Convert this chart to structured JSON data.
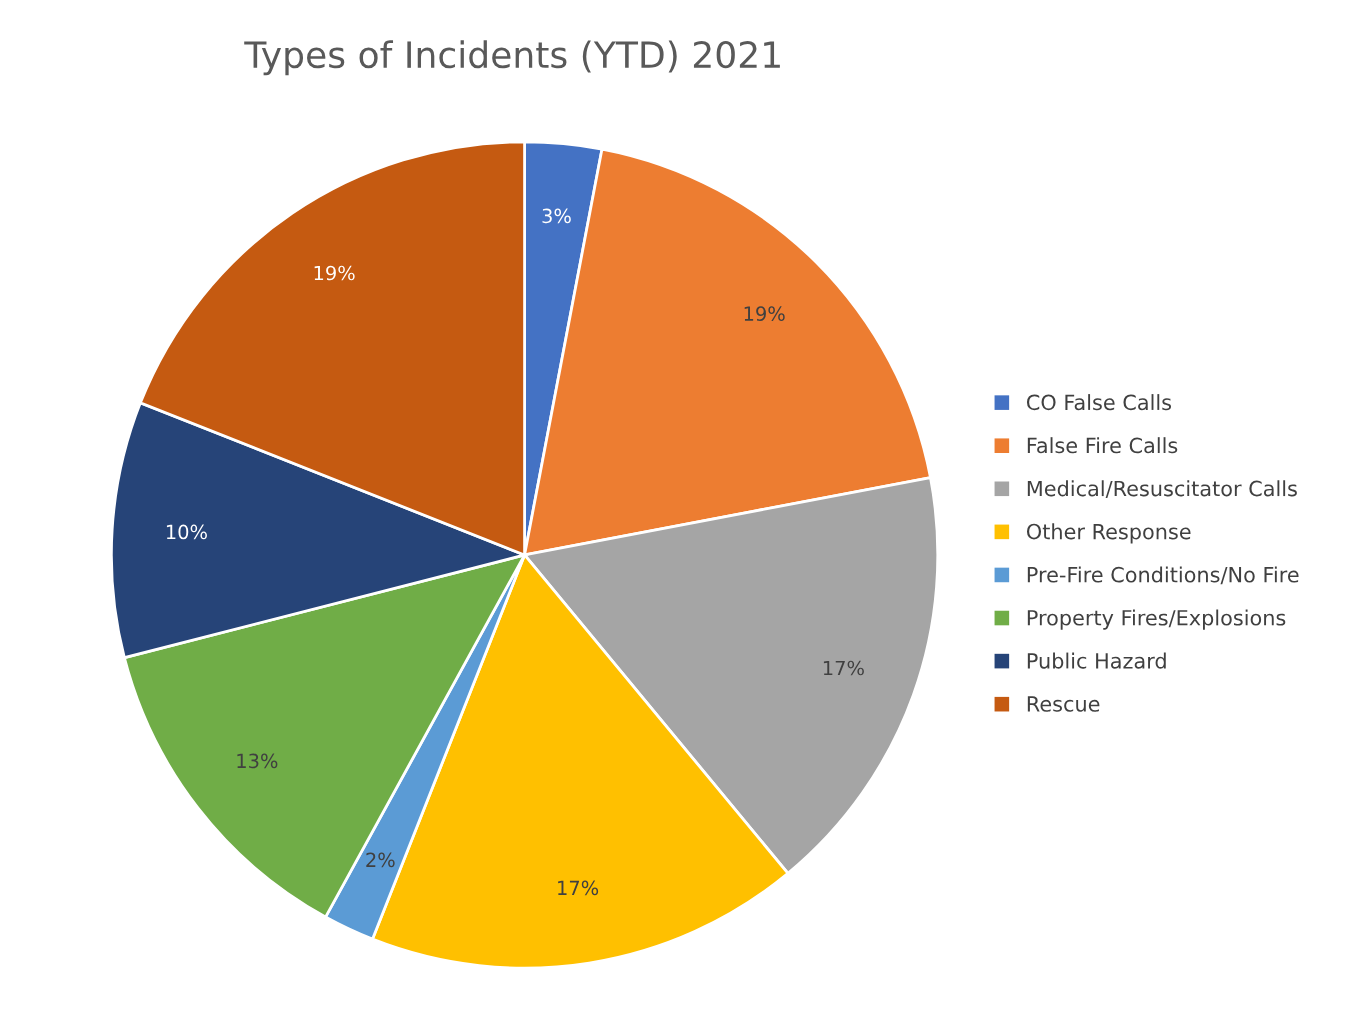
{
  "chart_data": {
    "type": "pie",
    "title": "Types of Incidents (YTD) 2021",
    "categories": [
      "CO False Calls",
      "False Fire Calls",
      "Medical/Resuscitator Calls",
      "Other Response",
      "Pre-Fire Conditions/No Fire",
      "Property Fires/Explosions",
      "Public Hazard",
      "Rescue"
    ],
    "values": [
      3,
      19,
      17,
      17,
      2,
      13,
      10,
      19
    ],
    "value_labels": [
      "3%",
      "19%",
      "17%",
      "17%",
      "2%",
      "13%",
      "10%",
      "19%"
    ],
    "colors": [
      "#4472c4",
      "#ed7d31",
      "#a5a5a5",
      "#ffc000",
      "#5b9bd5",
      "#70ad47",
      "#264478",
      "#c55a11"
    ],
    "legend": "right"
  }
}
